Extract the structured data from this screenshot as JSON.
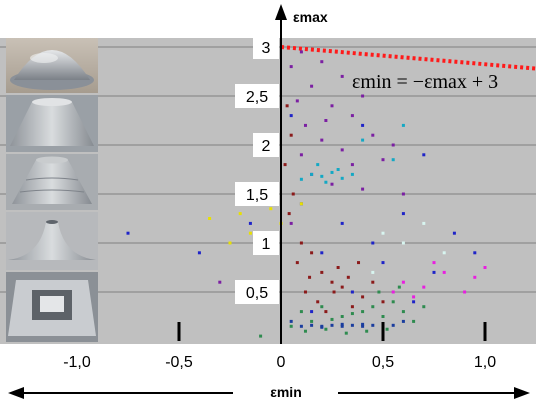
{
  "chart_data": {
    "type": "scatter",
    "title": "",
    "xlabel": "εmin",
    "ylabel": "εmax",
    "xlim": [
      -1.3,
      1.25
    ],
    "ylim": [
      0,
      3.1
    ],
    "grid": true,
    "x_ticks": [
      "-1,0",
      "-0,5",
      "0",
      "0,5",
      "1,0"
    ],
    "y_ticks": [
      "0,5",
      "1",
      "1,5",
      "2",
      "2,5",
      "3"
    ],
    "annotation": "εmin = −εmax + 3",
    "limit_line": {
      "name": "",
      "x": [
        0,
        1.25
      ],
      "y": [
        3,
        2.78
      ]
    },
    "series": [
      {
        "color": "#7b1fa2",
        "points": [
          [
            0.1,
            2.95
          ],
          [
            0.2,
            2.85
          ],
          [
            0.05,
            2.8
          ],
          [
            0.3,
            2.7
          ],
          [
            0.15,
            2.6
          ],
          [
            0.4,
            2.5
          ],
          [
            0.08,
            2.45
          ],
          [
            0.25,
            2.4
          ],
          [
            0.35,
            2.3
          ],
          [
            0.12,
            2.2
          ],
          [
            0.45,
            2.1
          ],
          [
            0.2,
            2.05
          ],
          [
            0.3,
            1.95
          ],
          [
            0.1,
            1.9
          ],
          [
            0.5,
            1.85
          ],
          [
            0.35,
            1.8
          ],
          [
            0.15,
            1.7
          ],
          [
            0.25,
            1.6
          ],
          [
            0.4,
            1.55
          ],
          [
            0.6,
            1.5
          ],
          [
            -0.1,
            1.0
          ],
          [
            -0.3,
            0.6
          ],
          [
            0.05,
            1.2
          ],
          [
            0.55,
            2.0
          ],
          [
            0.22,
            2.25
          ]
        ]
      },
      {
        "color": "#1e24c8",
        "points": [
          [
            0.05,
            2.3
          ],
          [
            0.4,
            2.2
          ],
          [
            0.7,
            1.9
          ],
          [
            -0.2,
            1.4
          ],
          [
            0.1,
            1.4
          ],
          [
            0.6,
            1.3
          ],
          [
            0.3,
            1.2
          ],
          [
            0.85,
            1.1
          ],
          [
            -0.4,
            0.9
          ],
          [
            0.2,
            0.9
          ],
          [
            0.5,
            0.8
          ],
          [
            0.75,
            0.7
          ],
          [
            -0.75,
            1.1
          ],
          [
            -0.08,
            0.6
          ],
          [
            0.35,
            0.5
          ],
          [
            0.65,
            0.4
          ],
          [
            0.15,
            0.3
          ],
          [
            0.45,
            1.0
          ],
          [
            0.95,
            0.9
          ],
          [
            -0.15,
            1.2
          ]
        ]
      },
      {
        "color": "#1a3d9e",
        "points": [
          [
            0.1,
            0.15
          ],
          [
            0.15,
            0.16
          ],
          [
            0.2,
            0.15
          ],
          [
            0.25,
            0.16
          ],
          [
            0.3,
            0.17
          ],
          [
            0.35,
            0.16
          ],
          [
            0.4,
            0.15
          ],
          [
            0.45,
            0.16
          ],
          [
            0.5,
            0.15
          ],
          [
            0.55,
            0.16
          ],
          [
            0.2,
            0.14
          ],
          [
            0.3,
            0.15
          ],
          [
            0.4,
            0.17
          ],
          [
            0.05,
            0.2
          ],
          [
            0.6,
            0.2
          ]
        ]
      },
      {
        "color": "#8b1a1a",
        "points": [
          [
            0.03,
            2.4
          ],
          [
            0.05,
            2.1
          ],
          [
            0.02,
            1.8
          ],
          [
            0.06,
            1.5
          ],
          [
            0.04,
            1.3
          ],
          [
            0.1,
            1.0
          ],
          [
            0.15,
            0.9
          ],
          [
            0.08,
            0.8
          ],
          [
            0.2,
            0.7
          ],
          [
            0.25,
            0.6
          ],
          [
            0.3,
            0.55
          ],
          [
            0.12,
            0.5
          ],
          [
            0.18,
            0.4
          ],
          [
            0.35,
            0.35
          ],
          [
            0.4,
            0.45
          ],
          [
            0.22,
            0.3
          ],
          [
            0.28,
            0.75
          ],
          [
            0.45,
            0.6
          ],
          [
            0.5,
            0.4
          ],
          [
            0.38,
            0.8
          ],
          [
            0.33,
            0.65
          ],
          [
            0.26,
            0.5
          ],
          [
            0.14,
            0.65
          ]
        ]
      },
      {
        "color": "#2e8b4f",
        "points": [
          [
            0.1,
            0.3
          ],
          [
            0.2,
            0.35
          ],
          [
            0.3,
            0.25
          ],
          [
            0.4,
            0.3
          ],
          [
            0.15,
            0.2
          ],
          [
            0.25,
            0.22
          ],
          [
            0.35,
            0.28
          ],
          [
            0.45,
            0.35
          ],
          [
            0.5,
            0.25
          ],
          [
            0.55,
            0.4
          ],
          [
            0.6,
            0.3
          ],
          [
            0.05,
            0.15
          ],
          [
            0.12,
            0.1
          ],
          [
            0.22,
            0.12
          ],
          [
            0.32,
            0.08
          ],
          [
            0.42,
            0.1
          ],
          [
            0.52,
            0.12
          ],
          [
            0.48,
            0.5
          ],
          [
            0.58,
            0.55
          ],
          [
            0.65,
            0.2
          ],
          [
            -0.1,
            0.05
          ],
          [
            0.7,
            0.35
          ]
        ]
      },
      {
        "color": "#13a8c4",
        "points": [
          [
            0.1,
            1.65
          ],
          [
            0.15,
            1.7
          ],
          [
            0.2,
            1.68
          ],
          [
            0.25,
            1.72
          ],
          [
            0.3,
            1.66
          ],
          [
            0.35,
            1.7
          ],
          [
            0.22,
            1.62
          ],
          [
            0.28,
            1.75
          ],
          [
            0.4,
            2.05
          ],
          [
            0.55,
            1.85
          ],
          [
            0.6,
            2.2
          ],
          [
            0.18,
            1.8
          ]
        ]
      },
      {
        "color": "#e91ee0",
        "points": [
          [
            0.55,
            0.5
          ],
          [
            0.6,
            0.6
          ],
          [
            0.7,
            0.55
          ],
          [
            0.8,
            0.7
          ],
          [
            0.95,
            0.65
          ],
          [
            0.65,
            0.45
          ],
          [
            0.75,
            0.8
          ],
          [
            1.0,
            0.75
          ],
          [
            0.9,
            0.5
          ]
        ]
      },
      {
        "color": "#e8e000",
        "points": [
          [
            -0.35,
            1.25
          ],
          [
            -0.2,
            1.3
          ],
          [
            -0.15,
            1.1
          ],
          [
            -0.25,
            1.0
          ],
          [
            -0.05,
            1.35
          ],
          [
            0.0,
            1.2
          ],
          [
            0.1,
            1.4
          ]
        ]
      },
      {
        "color": "#d8f5f0",
        "points": [
          [
            0.5,
            1.1
          ],
          [
            0.6,
            1.0
          ],
          [
            0.7,
            1.2
          ],
          [
            0.8,
            0.9
          ],
          [
            0.45,
            0.7
          ]
        ]
      }
    ]
  }
}
